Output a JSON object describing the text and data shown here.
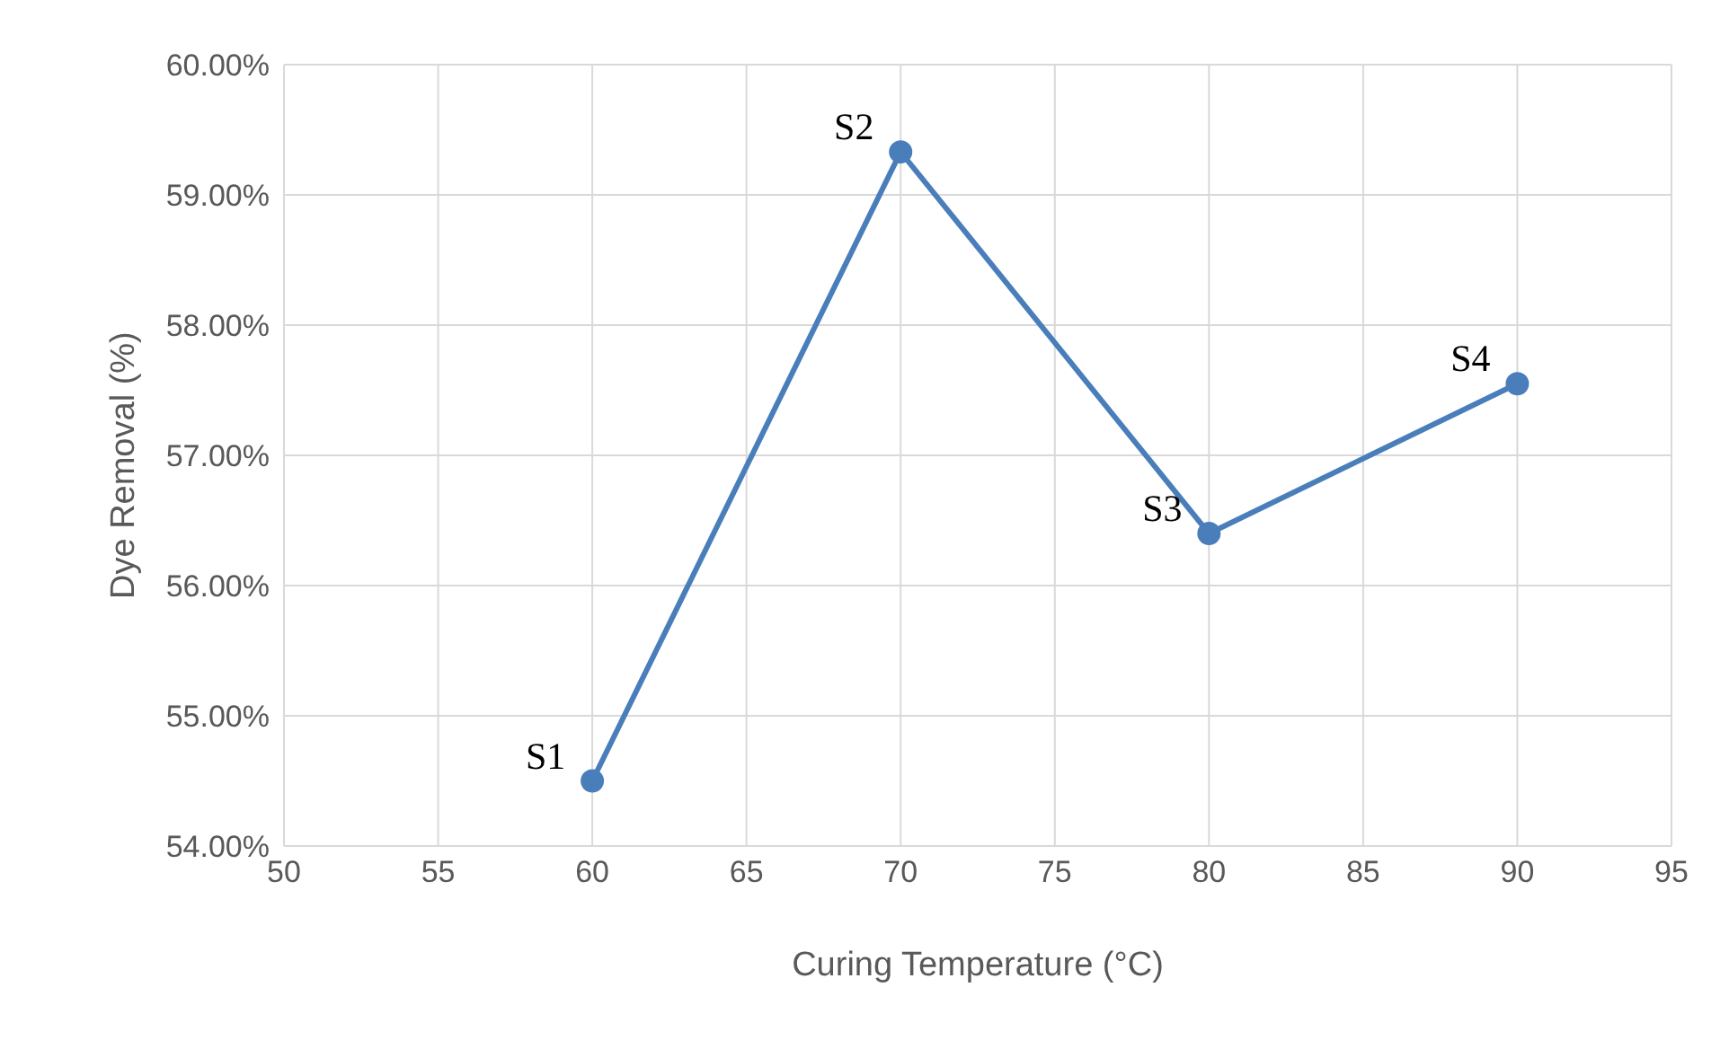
{
  "chart_data": {
    "type": "line",
    "xlabel": "Curing Temperature (°C)",
    "ylabel": "Dye Removal (%)",
    "x": [
      60,
      70,
      80,
      90
    ],
    "series": [
      {
        "color": "#4a7ebb",
        "values": [
          54.5,
          59.33,
          56.4,
          57.55
        ]
      }
    ],
    "xlim": [
      50,
      95
    ],
    "xticks": [
      50,
      55,
      60,
      65,
      70,
      75,
      80,
      85,
      90,
      95
    ],
    "ylim": [
      54,
      60
    ],
    "yticks": [
      {
        "value": 54,
        "label": "54.00%"
      },
      {
        "value": 55,
        "label": "55.00%"
      },
      {
        "value": 56,
        "label": "56.00%"
      },
      {
        "value": 57,
        "label": "57.00%"
      },
      {
        "value": 58,
        "label": "58.00%"
      },
      {
        "value": 59,
        "label": "59.00%"
      },
      {
        "value": 60,
        "label": "60.00%"
      }
    ],
    "grid": true,
    "marker": "circle",
    "line_style": "solid",
    "legend": false,
    "annotations": [
      {
        "text": "S1",
        "x": 60,
        "y": 54.5
      },
      {
        "text": "S2",
        "x": 70,
        "y": 59.33
      },
      {
        "text": "S3",
        "x": 80,
        "y": 56.4
      },
      {
        "text": "S4",
        "x": 90,
        "y": 57.55
      }
    ]
  }
}
